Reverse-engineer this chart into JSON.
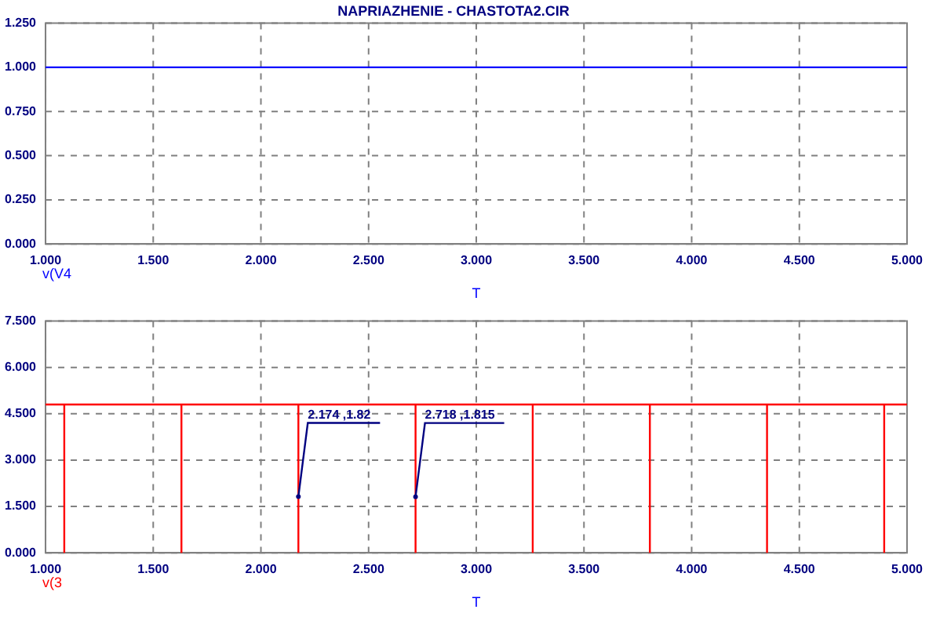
{
  "chart_data": [
    {
      "type": "line",
      "title": "NAPRIAZHENIE - CHASTOTA2.CIR",
      "xlabel": "T",
      "marker": "none",
      "grid": true,
      "series": [
        {
          "name": "v(V4",
          "color": "#0000ff",
          "x": [
            1,
            5
          ],
          "values": [
            1,
            1
          ]
        }
      ],
      "xlim": [
        1,
        5
      ],
      "xticks": [
        {
          "value": 1,
          "label": "1.000"
        },
        {
          "value": 1.5,
          "label": "1.500"
        },
        {
          "value": 2,
          "label": "2.000"
        },
        {
          "value": 2.5,
          "label": "2.500"
        },
        {
          "value": 3,
          "label": "3.000"
        },
        {
          "value": 3.5,
          "label": "3.500"
        },
        {
          "value": 4,
          "label": "4.000"
        },
        {
          "value": 4.5,
          "label": "4.500"
        },
        {
          "value": 5,
          "label": "5.000"
        }
      ],
      "ylim": [
        0,
        1.25
      ],
      "yticks": [
        {
          "value": 0,
          "label": "0.000"
        },
        {
          "value": 0.25,
          "label": "0.250"
        },
        {
          "value": 0.5,
          "label": "0.500"
        },
        {
          "value": 0.75,
          "label": "0.750"
        },
        {
          "value": 1,
          "label": "1.000"
        },
        {
          "value": 1.25,
          "label": "1.250"
        }
      ]
    },
    {
      "type": "line",
      "xlabel": "T",
      "marker": "none",
      "grid": true,
      "series": [
        {
          "name": "v(3",
          "color": "#ff0000",
          "x": [
            1,
            1.087,
            1.087,
            1.087,
            1.631,
            1.631,
            1.631,
            2.174,
            2.174,
            2.174,
            2.718,
            2.718,
            2.718,
            3.262,
            3.262,
            3.262,
            3.806,
            3.806,
            3.806,
            4.35,
            4.35,
            4.35,
            4.894,
            4.894,
            4.894,
            5
          ],
          "values": [
            4.8,
            4.8,
            0,
            4.8,
            4.8,
            0,
            4.8,
            4.8,
            0,
            4.8,
            4.8,
            0,
            4.8,
            4.8,
            0,
            4.8,
            4.8,
            0,
            4.8,
            4.8,
            0,
            4.8,
            4.8,
            0,
            4.8,
            4.8
          ]
        }
      ],
      "annotations": [
        {
          "text": "2.174 ,1.82",
          "x": 2.174,
          "y": 1.82
        },
        {
          "text": "2.718 ,1.815",
          "x": 2.718,
          "y": 1.815
        }
      ],
      "xlim": [
        1,
        5
      ],
      "xticks": [
        {
          "value": 1,
          "label": "1.000"
        },
        {
          "value": 1.5,
          "label": "1.500"
        },
        {
          "value": 2,
          "label": "2.000"
        },
        {
          "value": 2.5,
          "label": "2.500"
        },
        {
          "value": 3,
          "label": "3.000"
        },
        {
          "value": 3.5,
          "label": "3.500"
        },
        {
          "value": 4,
          "label": "4.000"
        },
        {
          "value": 4.5,
          "label": "4.500"
        },
        {
          "value": 5,
          "label": "5.000"
        }
      ],
      "ylim": [
        0,
        7.5
      ],
      "yticks": [
        {
          "value": 0,
          "label": "0.000"
        },
        {
          "value": 1.5,
          "label": "1.500"
        },
        {
          "value": 3,
          "label": "3.000"
        },
        {
          "value": 4.5,
          "label": "4.500"
        },
        {
          "value": 6,
          "label": "6.000"
        },
        {
          "value": 7.5,
          "label": "7.500"
        }
      ]
    }
  ]
}
